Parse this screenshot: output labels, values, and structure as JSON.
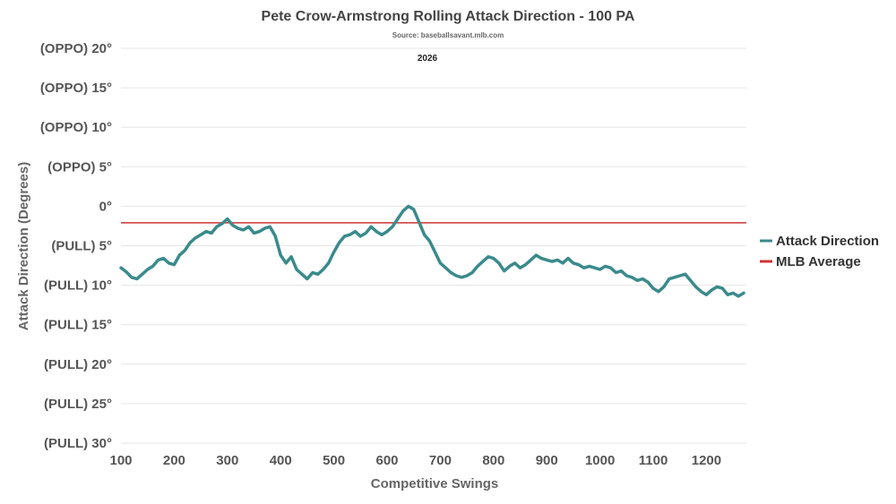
{
  "chart_data": {
    "type": "line",
    "title": "Pete Crow-Armstrong Rolling Attack Direction - 100 PA",
    "subtitle": "Source: baseballsavant.mlb.com",
    "season_label": "2026",
    "xlabel": "Competitive Swings",
    "ylabel": "Attack Direction (Degrees)",
    "xlim": [
      100,
      1275
    ],
    "ylim": [
      -30,
      20
    ],
    "x_ticks": [
      100,
      200,
      300,
      400,
      500,
      600,
      700,
      800,
      900,
      1000,
      1100,
      1200
    ],
    "y_ticks": [
      {
        "value": 20,
        "label": "(OPPO) 20°"
      },
      {
        "value": 15,
        "label": "(OPPO) 15°"
      },
      {
        "value": 10,
        "label": "(OPPO) 10°"
      },
      {
        "value": 5,
        "label": "(OPPO) 5°"
      },
      {
        "value": 0,
        "label": "0°"
      },
      {
        "value": -5,
        "label": "(PULL) 5°"
      },
      {
        "value": -10,
        "label": "(PULL) 10°"
      },
      {
        "value": -15,
        "label": "(PULL) 15°"
      },
      {
        "value": -20,
        "label": "(PULL) 20°"
      },
      {
        "value": -25,
        "label": "(PULL) 25°"
      },
      {
        "value": -30,
        "label": "(PULL) 30°"
      }
    ],
    "grid": true,
    "legend_position": "right",
    "series": [
      {
        "name": "Attack Direction",
        "color": "#3a8a8c",
        "x": [
          100,
          110,
          120,
          130,
          140,
          150,
          160,
          170,
          180,
          190,
          200,
          210,
          220,
          230,
          240,
          250,
          260,
          270,
          280,
          290,
          300,
          310,
          320,
          330,
          340,
          350,
          360,
          370,
          380,
          390,
          400,
          410,
          420,
          430,
          440,
          450,
          460,
          470,
          480,
          490,
          500,
          510,
          520,
          530,
          540,
          550,
          560,
          570,
          580,
          590,
          600,
          610,
          620,
          630,
          640,
          650,
          660,
          670,
          680,
          690,
          700,
          710,
          720,
          730,
          740,
          750,
          760,
          770,
          780,
          790,
          800,
          810,
          820,
          830,
          840,
          850,
          860,
          870,
          880,
          890,
          900,
          910,
          920,
          930,
          940,
          950,
          960,
          970,
          980,
          990,
          1000,
          1010,
          1020,
          1030,
          1040,
          1050,
          1060,
          1070,
          1080,
          1090,
          1100,
          1110,
          1120,
          1130,
          1140,
          1150,
          1160,
          1170,
          1180,
          1190,
          1200,
          1210,
          1220,
          1230,
          1240,
          1250,
          1260,
          1270
        ],
        "values": [
          -7.8,
          -8.3,
          -9.0,
          -9.2,
          -8.6,
          -8.0,
          -7.6,
          -6.8,
          -6.6,
          -7.2,
          -7.4,
          -6.2,
          -5.6,
          -4.6,
          -4.0,
          -3.6,
          -3.2,
          -3.4,
          -2.6,
          -2.2,
          -1.6,
          -2.4,
          -2.8,
          -3.0,
          -2.6,
          -3.4,
          -3.2,
          -2.8,
          -2.6,
          -3.8,
          -6.2,
          -7.2,
          -6.4,
          -8.0,
          -8.6,
          -9.2,
          -8.4,
          -8.6,
          -8.0,
          -7.2,
          -5.8,
          -4.6,
          -3.8,
          -3.6,
          -3.2,
          -3.8,
          -3.4,
          -2.6,
          -3.2,
          -3.6,
          -3.2,
          -2.6,
          -1.6,
          -0.6,
          0.0,
          -0.4,
          -2.0,
          -3.6,
          -4.4,
          -5.8,
          -7.2,
          -7.8,
          -8.4,
          -8.8,
          -9.0,
          -8.8,
          -8.4,
          -7.6,
          -7.0,
          -6.4,
          -6.6,
          -7.2,
          -8.2,
          -7.6,
          -7.2,
          -7.8,
          -7.4,
          -6.8,
          -6.2,
          -6.6,
          -6.8,
          -7.0,
          -6.8,
          -7.2,
          -6.6,
          -7.2,
          -7.4,
          -7.8,
          -7.6,
          -7.8,
          -8.0,
          -7.6,
          -7.8,
          -8.4,
          -8.2,
          -8.8,
          -9.0,
          -9.4,
          -9.2,
          -9.6,
          -10.4,
          -10.8,
          -10.2,
          -9.2,
          -9.0,
          -8.8,
          -8.6,
          -9.4,
          -10.2,
          -10.8,
          -11.2,
          -10.6,
          -10.2,
          -10.4,
          -11.2,
          -11.0,
          -11.4,
          -11.0
        ]
      },
      {
        "name": "MLB Average",
        "color": "#cc3333",
        "value": -2.1
      }
    ]
  }
}
